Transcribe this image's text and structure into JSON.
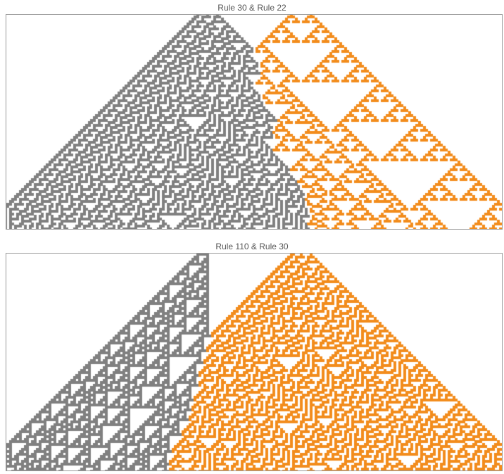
{
  "panels": [
    {
      "title": "Rule 30 & Rule 22",
      "left_rule": 30,
      "right_rule": 22,
      "left_color": "#808080",
      "right_color": "#f28c1c",
      "steps": 100,
      "seed_separation": 38
    },
    {
      "title": "Rule 110 & Rule 30",
      "left_rule": 110,
      "right_rule": 30,
      "left_color": "#808080",
      "right_color": "#f28c1c",
      "steps": 100,
      "seed_separation": 38
    }
  ],
  "colors": {
    "frame_border": "#9a9a9a",
    "title_text": "#555555",
    "background": "#ffffff"
  }
}
